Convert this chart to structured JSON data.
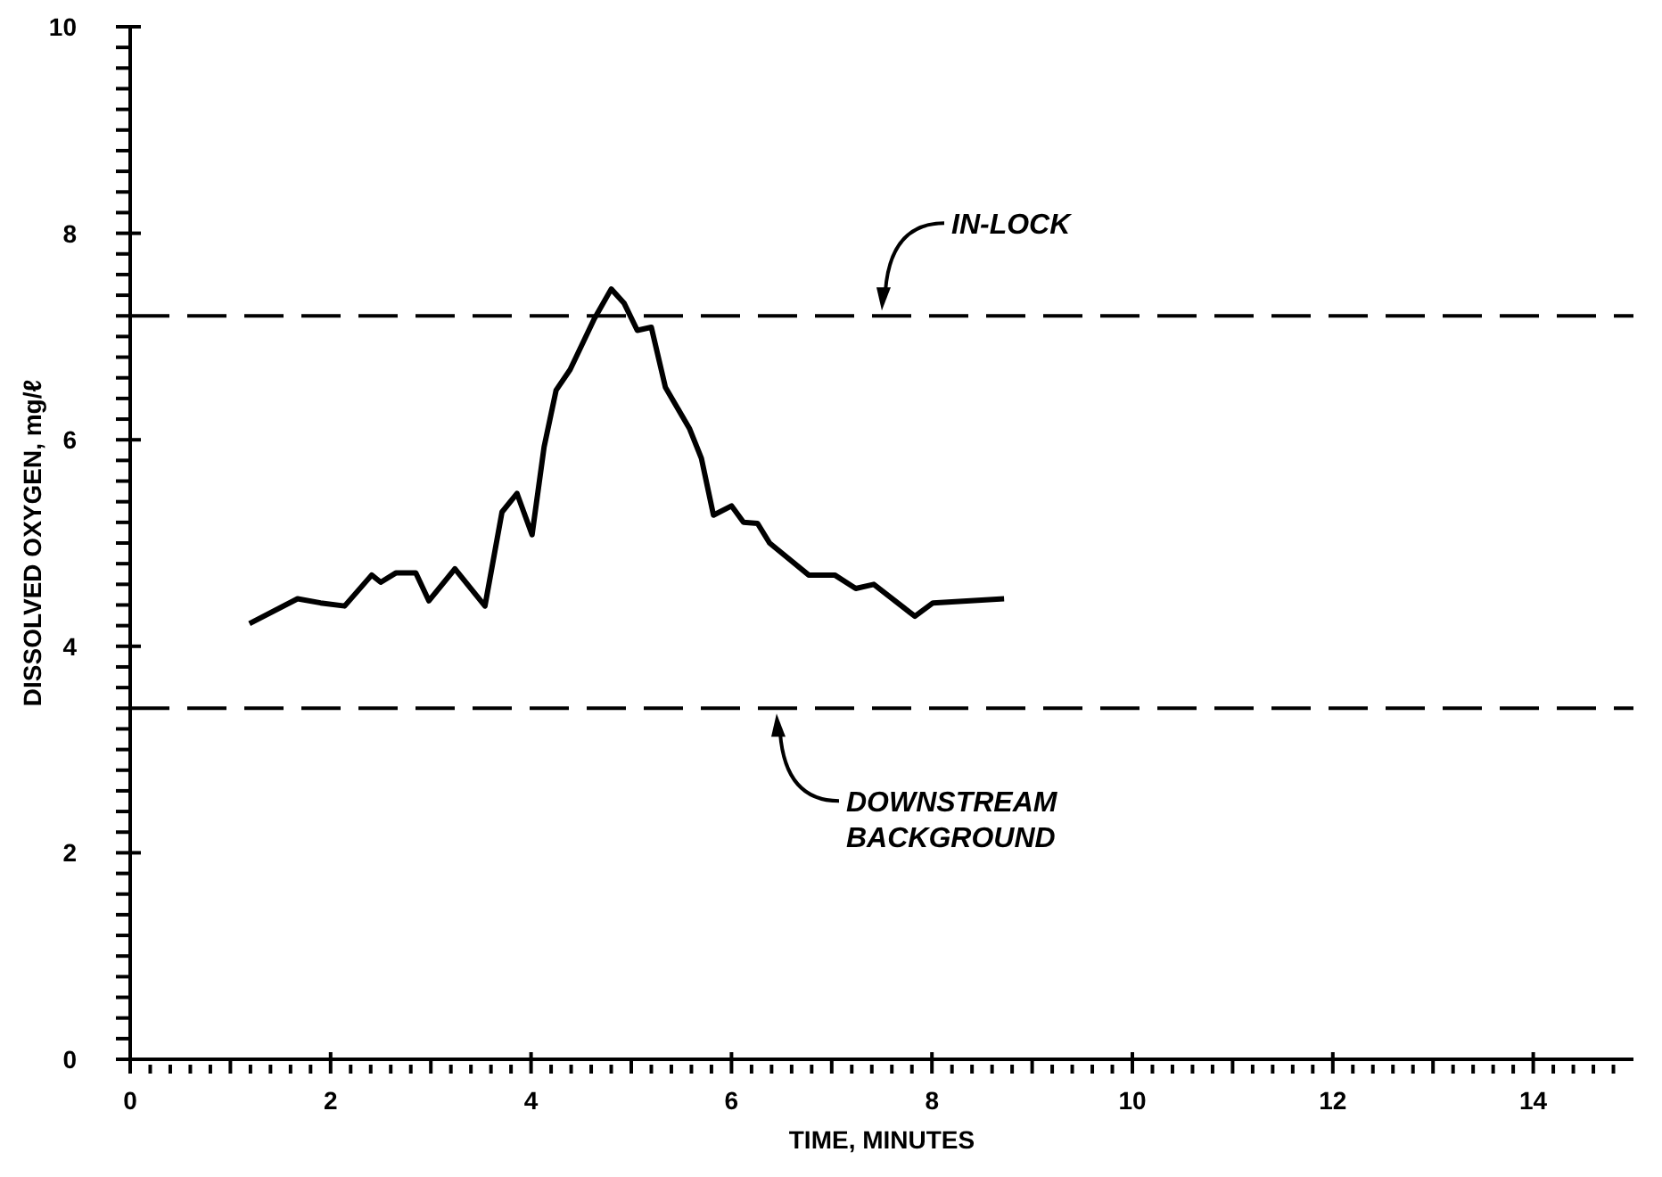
{
  "chart_data": {
    "type": "line",
    "xlabel": "TIME, MINUTES",
    "ylabel": "DISSOLVED OXYGEN, mg/ℓ",
    "x": [
      1.19,
      1.67,
      1.9,
      2.14,
      2.41,
      2.5,
      2.65,
      2.85,
      2.98,
      3.24,
      3.54,
      3.71,
      3.86,
      4.01,
      4.13,
      4.25,
      4.39,
      4.63,
      4.8,
      4.93,
      5.06,
      5.2,
      5.34,
      5.58,
      5.7,
      5.82,
      6.0,
      6.12,
      6.26,
      6.38,
      6.77,
      7.03,
      7.24,
      7.42,
      7.83,
      8.01,
      8.72
    ],
    "series": [
      {
        "color": "#000000",
        "values": [
          4.22,
          4.46,
          4.42,
          4.39,
          4.69,
          4.62,
          4.71,
          4.71,
          4.44,
          4.75,
          4.39,
          5.3,
          5.48,
          5.08,
          5.93,
          6.48,
          6.68,
          7.17,
          7.46,
          7.32,
          7.06,
          7.09,
          6.51,
          6.11,
          5.82,
          5.27,
          5.36,
          5.2,
          5.19,
          5.0,
          4.69,
          4.69,
          4.56,
          4.6,
          4.29,
          4.42,
          4.46
        ]
      }
    ],
    "xlim": [
      0,
      15
    ],
    "xticks": [
      0,
      {
        "value": 0.2,
        "label": null
      },
      {
        "value": 0.4,
        "label": null
      },
      {
        "value": 0.6,
        "label": null
      },
      {
        "value": 0.8,
        "label": null
      },
      {
        "value": 1,
        "label": null
      },
      {
        "value": 1.2,
        "label": null
      },
      {
        "value": 1.4,
        "label": null
      },
      {
        "value": 1.6,
        "label": null
      },
      {
        "value": 1.8,
        "label": null
      },
      2,
      {
        "value": 2.2,
        "label": null
      },
      {
        "value": 2.4,
        "label": null
      },
      {
        "value": 2.6,
        "label": null
      },
      {
        "value": 2.8,
        "label": null
      },
      {
        "value": 3,
        "label": null
      },
      {
        "value": 3.2,
        "label": null
      },
      {
        "value": 3.4,
        "label": null
      },
      {
        "value": 3.6,
        "label": null
      },
      {
        "value": 3.8,
        "label": null
      },
      4,
      {
        "value": 4.2,
        "label": null
      },
      {
        "value": 4.4,
        "label": null
      },
      {
        "value": 4.6,
        "label": null
      },
      {
        "value": 4.8,
        "label": null
      },
      {
        "value": 5,
        "label": null
      },
      {
        "value": 5.2,
        "label": null
      },
      {
        "value": 5.4,
        "label": null
      },
      {
        "value": 5.6,
        "label": null
      },
      {
        "value": 5.8,
        "label": null
      },
      6,
      {
        "value": 6.2,
        "label": null
      },
      {
        "value": 6.4,
        "label": null
      },
      {
        "value": 6.6,
        "label": null
      },
      {
        "value": 6.8,
        "label": null
      },
      {
        "value": 7,
        "label": null
      },
      {
        "value": 7.2,
        "label": null
      },
      {
        "value": 7.4,
        "label": null
      },
      {
        "value": 7.6,
        "label": null
      },
      {
        "value": 7.8,
        "label": null
      },
      8,
      {
        "value": 8.2,
        "label": null
      },
      {
        "value": 8.4,
        "label": null
      },
      {
        "value": 8.6,
        "label": null
      },
      {
        "value": 8.8,
        "label": null
      },
      {
        "value": 9,
        "label": null
      },
      {
        "value": 9.2,
        "label": null
      },
      {
        "value": 9.4,
        "label": null
      },
      {
        "value": 9.6,
        "label": null
      },
      {
        "value": 9.8,
        "label": null
      },
      10,
      {
        "value": 10.2,
        "label": null
      },
      {
        "value": 10.4,
        "label": null
      },
      {
        "value": 10.6,
        "label": null
      },
      {
        "value": 10.8,
        "label": null
      },
      {
        "value": 11,
        "label": null
      },
      {
        "value": 11.2,
        "label": null
      },
      {
        "value": 11.4,
        "label": null
      },
      {
        "value": 11.6,
        "label": null
      },
      {
        "value": 11.8,
        "label": null
      },
      12,
      {
        "value": 12.2,
        "label": null
      },
      {
        "value": 12.4,
        "label": null
      },
      {
        "value": 12.6,
        "label": null
      },
      {
        "value": 12.8,
        "label": null
      },
      {
        "value": 13,
        "label": null
      },
      {
        "value": 13.2,
        "label": null
      },
      {
        "value": 13.4,
        "label": null
      },
      {
        "value": 13.6,
        "label": null
      },
      {
        "value": 13.8,
        "label": null
      },
      14,
      {
        "value": 14.2,
        "label": null
      },
      {
        "value": 14.4,
        "label": null
      },
      {
        "value": 14.6,
        "label": null
      },
      {
        "value": 14.8,
        "label": null
      }
    ],
    "ylim": [
      0,
      10
    ],
    "yticks": [
      0,
      {
        "value": 0.2,
        "label": null
      },
      {
        "value": 0.4,
        "label": null
      },
      {
        "value": 0.6,
        "label": null
      },
      {
        "value": 0.8,
        "label": null
      },
      {
        "value": 1,
        "label": null
      },
      {
        "value": 1.2,
        "label": null
      },
      {
        "value": 1.4,
        "label": null
      },
      {
        "value": 1.6,
        "label": null
      },
      {
        "value": 1.8,
        "label": null
      },
      2,
      {
        "value": 2.2,
        "label": null
      },
      {
        "value": 2.4,
        "label": null
      },
      {
        "value": 2.6,
        "label": null
      },
      {
        "value": 2.8,
        "label": null
      },
      {
        "value": 3,
        "label": null
      },
      {
        "value": 3.2,
        "label": null
      },
      {
        "value": 3.4,
        "label": null
      },
      {
        "value": 3.6,
        "label": null
      },
      {
        "value": 3.8,
        "label": null
      },
      4,
      {
        "value": 4.2,
        "label": null
      },
      {
        "value": 4.4,
        "label": null
      },
      {
        "value": 4.6,
        "label": null
      },
      {
        "value": 4.8,
        "label": null
      },
      {
        "value": 5,
        "label": null
      },
      {
        "value": 5.2,
        "label": null
      },
      {
        "value": 5.4,
        "label": null
      },
      {
        "value": 5.6,
        "label": null
      },
      {
        "value": 5.8,
        "label": null
      },
      6,
      {
        "value": 6.2,
        "label": null
      },
      {
        "value": 6.4,
        "label": null
      },
      {
        "value": 6.6,
        "label": null
      },
      {
        "value": 6.8,
        "label": null
      },
      {
        "value": 7,
        "label": null
      },
      {
        "value": 7.2,
        "label": null
      },
      {
        "value": 7.4,
        "label": null
      },
      {
        "value": 7.6,
        "label": null
      },
      {
        "value": 7.8,
        "label": null
      },
      8,
      {
        "value": 8.2,
        "label": null
      },
      {
        "value": 8.4,
        "label": null
      },
      {
        "value": 8.6,
        "label": null
      },
      {
        "value": 8.8,
        "label": null
      },
      {
        "value": 9,
        "label": null
      },
      {
        "value": 9.2,
        "label": null
      },
      {
        "value": 9.4,
        "label": null
      },
      {
        "value": 9.6,
        "label": null
      },
      {
        "value": 9.8,
        "label": null
      },
      10
    ],
    "ref_lines": [
      {
        "axis": "y",
        "value": 7.2,
        "label": "IN-LOCK",
        "color": "#000000",
        "line_style": "dashed"
      },
      {
        "axis": "y",
        "value": 3.4,
        "label": "DOWNSTREAM BACKGROUND",
        "color": "#000000",
        "line_style": "dashed"
      }
    ]
  }
}
